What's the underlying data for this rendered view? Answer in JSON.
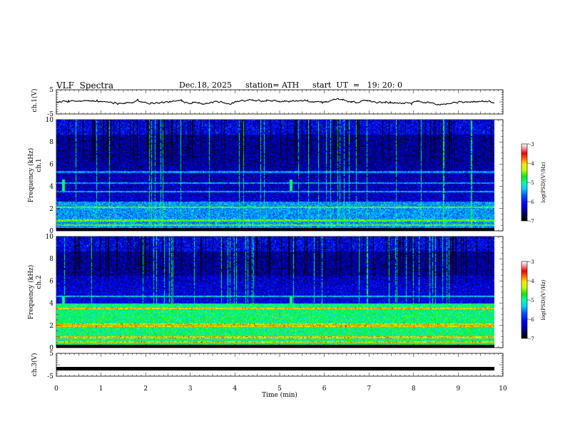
{
  "header": {
    "title": "VLF  Spectra",
    "date": "Dec.18, 2025",
    "station": "station= ATH",
    "start": "start  UT  =   19: 20: 0"
  },
  "chart_data": [
    {
      "type": "line",
      "ylabel": "ch.1(V)",
      "ylim": [
        -5,
        5
      ],
      "yticks": [
        "5",
        "-5"
      ],
      "xlim": [
        0,
        10
      ],
      "description_series": "waveform trace around 0 V with small fluctuations (about -1 to +1 V)",
      "series": [
        {
          "values_range": [
            -1.2,
            1.2
          ],
          "baseline": 0
        }
      ]
    },
    {
      "type": "heatmap",
      "ylabel": "ch.1\nFrequency (kHz)",
      "ylim": [
        0,
        10
      ],
      "yticks": [
        "0",
        "2",
        "4",
        "6",
        "8",
        "10"
      ],
      "xlim": [
        0,
        9.85
      ],
      "colorbar": {
        "label": "log(PSD)(V²/Hz)",
        "range": [
          -7,
          -3
        ],
        "ticks": [
          "-3",
          "-4",
          "-5",
          "-6",
          "-7"
        ]
      },
      "features": {
        "low_band_khz": [
          0,
          2.6
        ],
        "low_band_level": -5.5,
        "mid_band_level": -6.3,
        "upper_band_level": -6.5,
        "bands_khz": [
          4.3,
          5.3,
          3.5,
          2.1,
          0.9,
          0.5
        ],
        "pulse_minutes": [
          0.15,
          5.25
        ]
      }
    },
    {
      "type": "heatmap",
      "ylabel": "ch.2\nFrequency (kHz)",
      "ylim": [
        0,
        10
      ],
      "yticks": [
        "0",
        "2",
        "4",
        "6",
        "8",
        "10"
      ],
      "xlim": [
        0,
        9.85
      ],
      "colorbar": {
        "label": "log(PSD)(V²/Hz)",
        "range": [
          -7,
          -3
        ],
        "ticks": [
          "-3",
          "-4",
          "-5",
          "-6",
          "-7"
        ]
      },
      "features": {
        "low_band_khz": [
          0,
          4.0
        ],
        "low_band_level": -4.9,
        "mid_band_level": -6.2,
        "upper_band_level": -6.5,
        "bands_khz": [
          4.6,
          3.5,
          2.1,
          1.9,
          0.9,
          0.5
        ],
        "pulse_minutes": [
          0.15,
          5.25
        ]
      }
    },
    {
      "type": "line",
      "ylabel": "ch.3(V)",
      "xlabel": "Time  (min)",
      "ylim": [
        -5,
        5
      ],
      "yticks": [
        "5",
        "-5"
      ],
      "xlim": [
        0,
        10
      ],
      "xticks": [
        "0",
        "1",
        "2",
        "3",
        "4",
        "5",
        "6",
        "7",
        "8",
        "9",
        "10"
      ],
      "series": [
        {
          "constant": -1.7
        }
      ]
    }
  ],
  "colors": {
    "ink": "#000000",
    "trace": "#000000"
  }
}
